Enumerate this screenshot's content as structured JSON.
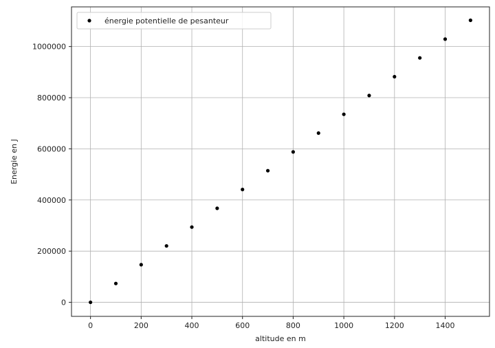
{
  "chart_data": {
    "type": "scatter",
    "title": "",
    "xlabel": "altitude en m",
    "ylabel": "Energie en J",
    "xlim": [
      -75,
      1575
    ],
    "ylim": [
      -55000,
      1155000
    ],
    "grid": true,
    "legend_placement": "top-left",
    "x_ticks": [
      0,
      200,
      400,
      600,
      800,
      1000,
      1200,
      1400
    ],
    "x_tick_labels": [
      "0",
      "200",
      "400",
      "600",
      "800",
      "1000",
      "1200",
      "1400"
    ],
    "y_ticks": [
      0,
      200000,
      400000,
      600000,
      800000,
      1000000
    ],
    "y_tick_labels": [
      "0",
      "200000",
      "400000",
      "600000",
      "800000",
      "1000000"
    ],
    "series": [
      {
        "name": "énergie potentielle de pesanteur",
        "color": "#000000",
        "x": [
          0,
          100,
          200,
          300,
          400,
          500,
          600,
          700,
          800,
          900,
          1000,
          1100,
          1200,
          1300,
          1400,
          1500
        ],
        "y": [
          0,
          73500,
          147000,
          220500,
          294000,
          367500,
          441000,
          514500,
          588000,
          661500,
          735000,
          808500,
          882000,
          955500,
          1029000,
          1102500
        ]
      }
    ]
  }
}
